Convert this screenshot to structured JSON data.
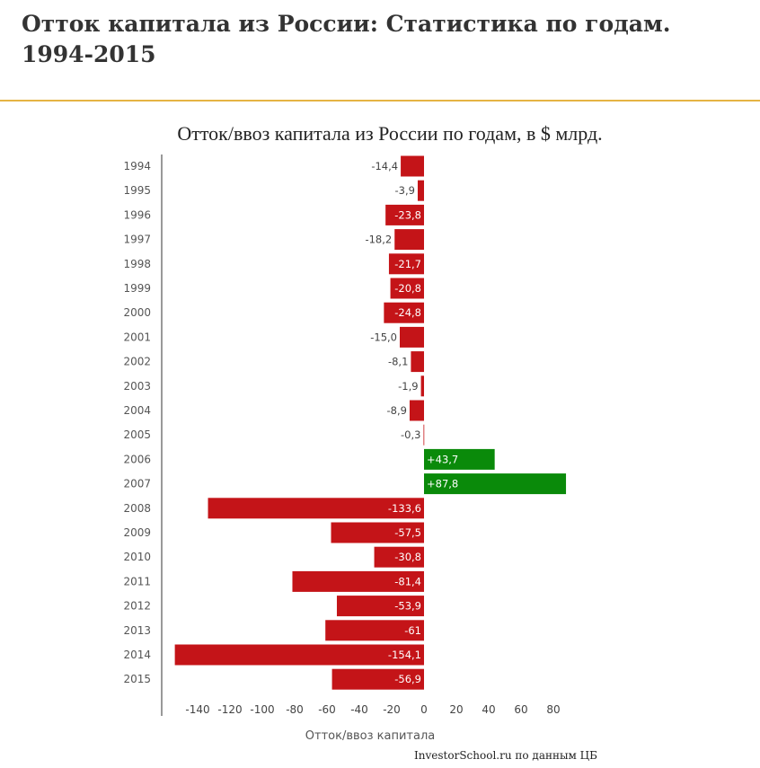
{
  "page": {
    "heading": "Отток капитала из России: Статистика по годам. 1994-2015",
    "heading_rule_color": "#e5b343"
  },
  "source_note": "InvestorSchool.ru по данным ЦБ",
  "colors": {
    "outflow": "#c41418",
    "inflow": "#0a8a0a",
    "axis": "#999999"
  },
  "chart_data": {
    "type": "bar",
    "orientation": "horizontal",
    "title": "Отток/ввоз капитала из России по годам, в $ млрд.",
    "xlabel": "Отток/ввоз капитала",
    "ylabel": "",
    "xlim": [
      -150,
      90
    ],
    "xticks": [
      -140,
      -120,
      -100,
      -80,
      -60,
      -40,
      -20,
      0,
      20,
      40,
      60,
      80
    ],
    "grid": false,
    "legend": "none",
    "categories": [
      "1994",
      "1995",
      "1996",
      "1997",
      "1998",
      "1999",
      "2000",
      "2001",
      "2002",
      "2003",
      "2004",
      "2005",
      "2006",
      "2007",
      "2008",
      "2009",
      "2010",
      "2011",
      "2012",
      "2013",
      "2014",
      "2015"
    ],
    "values": [
      -14.4,
      -3.9,
      -23.8,
      -18.2,
      -21.7,
      -20.8,
      -24.8,
      -15.0,
      -8.1,
      -1.9,
      -8.9,
      -0.3,
      43.7,
      87.8,
      -133.6,
      -57.5,
      -30.8,
      -81.4,
      -53.9,
      -61,
      -154.1,
      -56.9
    ],
    "value_labels": [
      "-14,4",
      "-3,9",
      "-23,8",
      "-18,2",
      "-21,7",
      "-20,8",
      "-24,8",
      "-15,0",
      "-8,1",
      "-1,9",
      "-8,9",
      "-0,3",
      "+43,7",
      "+87,8",
      "-133,6",
      "-57,5",
      "-30,8",
      "-81,4",
      "-53,9",
      "-61",
      "-154,1",
      "-56,9"
    ]
  }
}
